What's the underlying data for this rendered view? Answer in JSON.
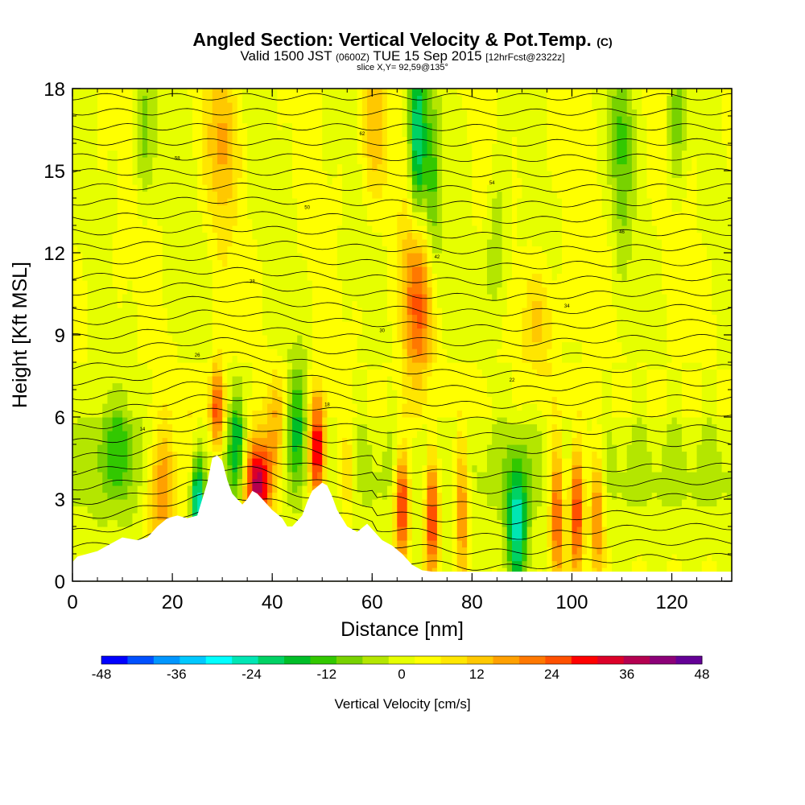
{
  "chart_data": {
    "type": "heatmap",
    "title": "Angled Section: Vertical Velocity & Pot.Temp.",
    "title_unit": "(C)",
    "subtitle_main": "Valid 1500 JST",
    "subtitle_z": "(0600Z)",
    "subtitle_date": "TUE 15 Sep 2015",
    "subtitle_fcst": "[12hrFcst@2322z]",
    "slice_label": "slice X,Y= 92,59@135°",
    "xlabel": "Distance [nm]",
    "ylabel": "Height [Kft MSL]",
    "xlim": [
      0,
      132
    ],
    "ylim": [
      0,
      18
    ],
    "x_ticks": [
      0,
      20,
      40,
      60,
      80,
      100,
      120
    ],
    "y_ticks": [
      0,
      3,
      6,
      9,
      12,
      15,
      18
    ],
    "colorbar": {
      "label": "Vertical Velocity [cm/s]",
      "ticks": [
        -48,
        -36,
        -24,
        -12,
        0,
        12,
        24,
        36,
        48
      ],
      "colors": [
        "#0000ff",
        "#0050ff",
        "#0096ff",
        "#00c8ff",
        "#00ffff",
        "#00e6b4",
        "#00d264",
        "#00be28",
        "#32c800",
        "#78d200",
        "#b4e600",
        "#e6ff00",
        "#ffff00",
        "#ffe600",
        "#ffc800",
        "#ffa000",
        "#ff7800",
        "#ff5000",
        "#ff0000",
        "#dc0028",
        "#b40050",
        "#8c0078",
        "#640096"
      ]
    },
    "terrain": [
      [
        0,
        0.7
      ],
      [
        1,
        0.9
      ],
      [
        3,
        1.0
      ],
      [
        5,
        1.1
      ],
      [
        7,
        1.3
      ],
      [
        10,
        1.6
      ],
      [
        13,
        1.5
      ],
      [
        15,
        1.6
      ],
      [
        17,
        2.0
      ],
      [
        19,
        2.3
      ],
      [
        21,
        2.4
      ],
      [
        23,
        2.3
      ],
      [
        25,
        2.4
      ],
      [
        26,
        3.0
      ],
      [
        27,
        3.6
      ],
      [
        28,
        4.5
      ],
      [
        29,
        4.6
      ],
      [
        30,
        4.4
      ],
      [
        31,
        3.7
      ],
      [
        32,
        3.2
      ],
      [
        34,
        2.8
      ],
      [
        35,
        3.0
      ],
      [
        36,
        3.3
      ],
      [
        37,
        3.2
      ],
      [
        38,
        3.0
      ],
      [
        40,
        2.6
      ],
      [
        42,
        2.3
      ],
      [
        43,
        2.0
      ],
      [
        44,
        2.0
      ],
      [
        46,
        2.4
      ],
      [
        47,
        2.9
      ],
      [
        48,
        3.3
      ],
      [
        50,
        3.6
      ],
      [
        51,
        3.5
      ],
      [
        52,
        3.1
      ],
      [
        53,
        2.6
      ],
      [
        55,
        2.0
      ],
      [
        57,
        1.8
      ],
      [
        59,
        2.1
      ],
      [
        60,
        1.9
      ],
      [
        62,
        1.5
      ],
      [
        64,
        1.3
      ],
      [
        66,
        1.0
      ],
      [
        68,
        0.6
      ],
      [
        70,
        0.4
      ],
      [
        72,
        0.35
      ],
      [
        80,
        0.35
      ],
      [
        132,
        0.35
      ]
    ],
    "updrafts": [
      {
        "x": 18,
        "z": 3.4,
        "w": 20,
        "sx": 2.2,
        "sz": 1.6
      },
      {
        "x": 24,
        "z": 4.5,
        "w": 14,
        "sx": 1.5,
        "sz": 1.4
      },
      {
        "x": 29,
        "z": 6.2,
        "w": 24,
        "sx": 1.0,
        "sz": 1.2
      },
      {
        "x": 37,
        "z": 3.6,
        "w": 40,
        "sx": 2.0,
        "sz": 1.3
      },
      {
        "x": 41,
        "z": 5.5,
        "w": 12,
        "sx": 1.5,
        "sz": 1.5
      },
      {
        "x": 49,
        "z": 4.8,
        "w": 34,
        "sx": 1.2,
        "sz": 1.4
      },
      {
        "x": 55,
        "z": 4.0,
        "w": 12,
        "sx": 1.2,
        "sz": 1.2
      },
      {
        "x": 66,
        "z": 2.8,
        "w": 30,
        "sx": 1.0,
        "sz": 1.5
      },
      {
        "x": 72,
        "z": 2.5,
        "w": 28,
        "sx": 1.0,
        "sz": 1.7
      },
      {
        "x": 69,
        "z": 10.5,
        "w": 22,
        "sx": 2.0,
        "sz": 2.4
      },
      {
        "x": 78,
        "z": 3.0,
        "w": 20,
        "sx": 1.0,
        "sz": 2.0
      },
      {
        "x": 97,
        "z": 2.5,
        "w": 24,
        "sx": 1.0,
        "sz": 2.0
      },
      {
        "x": 101,
        "z": 2.7,
        "w": 28,
        "sx": 1.0,
        "sz": 1.8
      },
      {
        "x": 105,
        "z": 2.6,
        "w": 20,
        "sx": 1.0,
        "sz": 1.8
      },
      {
        "x": 94,
        "z": 9.5,
        "w": 10,
        "sx": 2.5,
        "sz": 1.5
      },
      {
        "x": 30,
        "z": 16.0,
        "w": 12,
        "sx": 2.0,
        "sz": 2.0
      },
      {
        "x": 60,
        "z": 16.5,
        "w": 10,
        "sx": 2.0,
        "sz": 2.0
      }
    ],
    "downdrafts": [
      {
        "x": 25,
        "z": 3.0,
        "w": -30,
        "sx": 1.0,
        "sz": 1.5
      },
      {
        "x": 33,
        "z": 5.0,
        "w": -20,
        "sx": 1.2,
        "sz": 1.5
      },
      {
        "x": 45,
        "z": 6.0,
        "w": -16,
        "sx": 1.5,
        "sz": 1.5
      },
      {
        "x": 69,
        "z": 16.0,
        "w": -26,
        "sx": 1.2,
        "sz": 2.6
      },
      {
        "x": 89,
        "z": 2.0,
        "w": -24,
        "sx": 1.5,
        "sz": 1.8
      },
      {
        "x": 72,
        "z": 14.0,
        "w": -12,
        "sx": 1.2,
        "sz": 2.5
      },
      {
        "x": 14,
        "z": 16.5,
        "w": -10,
        "sx": 1.5,
        "sz": 2.0
      },
      {
        "x": 110,
        "z": 16.0,
        "w": -12,
        "sx": 1.5,
        "sz": 2.5
      },
      {
        "x": 121,
        "z": 17.0,
        "w": -10,
        "sx": 1.5,
        "sz": 2.0
      },
      {
        "x": 85,
        "z": 12.0,
        "w": -10,
        "sx": 1.5,
        "sz": 2.0
      },
      {
        "x": 9,
        "z": 5.0,
        "w": -10,
        "sx": 3.0,
        "sz": 1.5
      }
    ],
    "contour_labels": [
      "14",
      "18",
      "22",
      "26",
      "30",
      "34",
      "38",
      "42",
      "46",
      "50",
      "54",
      "58",
      "62"
    ]
  }
}
